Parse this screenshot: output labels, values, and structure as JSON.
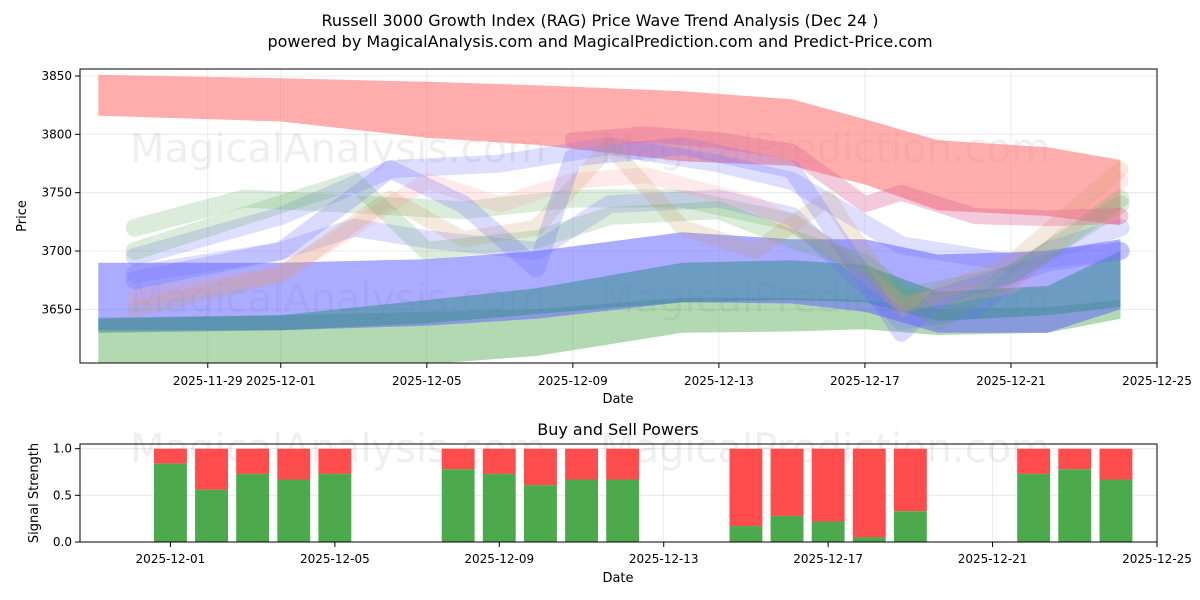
{
  "chart_data": [
    {
      "type": "area",
      "title_line1": "Russell 3000 Growth Index (RAG) Price Wave Trend Analysis (Dec 24 )",
      "title_line2": "powered by MagicalAnalysis.com and MagicalPrediction.com and Predict-Price.com",
      "xlabel": "Date",
      "ylabel": "Price",
      "xlim": [
        "2025-11-26",
        "2025-12-25"
      ],
      "ylim": [
        3604,
        3856
      ],
      "x_ticks": [
        "2025-11-29",
        "2025-12-01",
        "2025-12-05",
        "2025-12-09",
        "2025-12-13",
        "2025-12-17",
        "2025-12-21",
        "2025-12-25"
      ],
      "y_ticks": [
        3650,
        3700,
        3750,
        3800,
        3850
      ],
      "grid": true,
      "watermarks": [
        "MagicalAnalysis.com",
        "MagicalPrediction.com"
      ],
      "bands": [
        {
          "name": "red-top",
          "color": "#ff7777",
          "opacity": 0.6,
          "points": [
            [
              "2025-11-26",
              3851,
              3816
            ],
            [
              "2025-12-01",
              3848,
              3811
            ],
            [
              "2025-12-05",
              3845,
              3797
            ],
            [
              "2025-12-08",
              3842,
              3791
            ],
            [
              "2025-12-12",
              3837,
              3777
            ],
            [
              "2025-12-15",
              3830,
              3773
            ],
            [
              "2025-12-17",
              3813,
              3757
            ],
            [
              "2025-12-19",
              3795,
              3735
            ],
            [
              "2025-12-22",
              3789,
              3730
            ],
            [
              "2025-12-24",
              3778,
              3722
            ]
          ]
        },
        {
          "name": "green-bottom",
          "color": "#55aa55",
          "opacity": 0.45,
          "points": [
            [
              "2025-11-26",
              3643,
              3600
            ],
            [
              "2025-12-01",
              3645,
              3600
            ],
            [
              "2025-12-05",
              3648,
              3603
            ],
            [
              "2025-12-08",
              3650,
              3610
            ],
            [
              "2025-12-12",
              3660,
              3630
            ],
            [
              "2025-12-15",
              3660,
              3631
            ],
            [
              "2025-12-17",
              3658,
              3633
            ],
            [
              "2025-12-19",
              3650,
              3628
            ],
            [
              "2025-12-22",
              3652,
              3630
            ],
            [
              "2025-12-24",
              3658,
              3642
            ]
          ]
        },
        {
          "name": "blue-bottom",
          "color": "#6666ff",
          "opacity": 0.55,
          "points": [
            [
              "2025-11-26",
              3690,
              3632
            ],
            [
              "2025-12-01",
              3690,
              3632
            ],
            [
              "2025-12-05",
              3693,
              3636
            ],
            [
              "2025-12-08",
              3700,
              3642
            ],
            [
              "2025-12-12",
              3716,
              3656
            ],
            [
              "2025-12-15",
              3710,
              3655
            ],
            [
              "2025-12-17",
              3710,
              3648
            ],
            [
              "2025-12-19",
              3697,
              3630
            ],
            [
              "2025-12-22",
              3700,
              3630
            ],
            [
              "2025-12-24",
              3710,
              3650
            ]
          ]
        },
        {
          "name": "teal-mid",
          "color": "#3a8f8f",
          "opacity": 0.55,
          "points": [
            [
              "2025-11-26",
              3642,
              3630
            ],
            [
              "2025-12-01",
              3645,
              3632
            ],
            [
              "2025-12-05",
              3658,
              3638
            ],
            [
              "2025-12-08",
              3668,
              3646
            ],
            [
              "2025-12-12",
              3690,
              3656
            ],
            [
              "2025-12-15",
              3692,
              3658
            ],
            [
              "2025-12-17",
              3688,
              3656
            ],
            [
              "2025-12-19",
              3665,
              3640
            ],
            [
              "2025-12-22",
              3670,
              3645
            ],
            [
              "2025-12-24",
              3700,
              3652
            ]
          ]
        }
      ],
      "waves": [
        {
          "color": "#6a6aff",
          "opacity": 0.22,
          "width": 18,
          "points": [
            [
              "2025-11-27",
              3695
            ],
            [
              "2025-12-01",
              3730
            ],
            [
              "2025-12-04",
              3770
            ],
            [
              "2025-12-07",
              3775
            ],
            [
              "2025-12-10",
              3790
            ],
            [
              "2025-12-13",
              3775
            ],
            [
              "2025-12-15",
              3760
            ],
            [
              "2025-12-18",
              3705
            ],
            [
              "2025-12-21",
              3690
            ],
            [
              "2025-12-24",
              3700
            ]
          ]
        },
        {
          "color": "#5aaa5a",
          "opacity": 0.22,
          "width": 18,
          "points": [
            [
              "2025-11-27",
              3720
            ],
            [
              "2025-11-30",
              3745
            ],
            [
              "2025-12-03",
              3740
            ],
            [
              "2025-12-06",
              3735
            ],
            [
              "2025-12-09",
              3745
            ],
            [
              "2025-12-12",
              3745
            ],
            [
              "2025-12-15",
              3725
            ],
            [
              "2025-12-18",
              3660
            ],
            [
              "2025-12-21",
              3680
            ],
            [
              "2025-12-24",
              3740
            ]
          ]
        },
        {
          "color": "#6a6aff",
          "opacity": 0.22,
          "width": 18,
          "points": [
            [
              "2025-11-27",
              3680
            ],
            [
              "2025-12-01",
              3700
            ],
            [
              "2025-12-03",
              3720
            ],
            [
              "2025-12-05",
              3710
            ],
            [
              "2025-12-08",
              3700
            ],
            [
              "2025-12-10",
              3740
            ],
            [
              "2025-12-13",
              3745
            ],
            [
              "2025-12-15",
              3730
            ],
            [
              "2025-12-18",
              3640
            ],
            [
              "2025-12-20",
              3650
            ],
            [
              "2025-12-22",
              3700
            ],
            [
              "2025-12-24",
              3720
            ]
          ]
        },
        {
          "color": "#ff9999",
          "opacity": 0.22,
          "width": 16,
          "points": [
            [
              "2025-11-27",
              3660
            ],
            [
              "2025-12-01",
              3680
            ],
            [
              "2025-12-03",
              3720
            ],
            [
              "2025-12-05",
              3760
            ],
            [
              "2025-12-07",
              3740
            ],
            [
              "2025-12-09",
              3760
            ],
            [
              "2025-12-11",
              3765
            ],
            [
              "2025-12-14",
              3740
            ],
            [
              "2025-12-16",
              3705
            ],
            [
              "2025-12-18",
              3655
            ],
            [
              "2025-12-21",
              3670
            ],
            [
              "2025-12-24",
              3760
            ]
          ]
        },
        {
          "color": "#cc9966",
          "opacity": 0.22,
          "width": 16,
          "points": [
            [
              "2025-11-27",
              3650
            ],
            [
              "2025-12-01",
              3680
            ],
            [
              "2025-12-04",
              3745
            ],
            [
              "2025-12-06",
              3710
            ],
            [
              "2025-12-08",
              3720
            ],
            [
              "2025-12-10",
              3790
            ],
            [
              "2025-12-12",
              3720
            ],
            [
              "2025-12-14",
              3700
            ],
            [
              "2025-12-16",
              3745
            ],
            [
              "2025-12-18",
              3650
            ],
            [
              "2025-12-21",
              3690
            ],
            [
              "2025-12-24",
              3770
            ]
          ]
        },
        {
          "color": "#6a6aff",
          "opacity": 0.25,
          "width": 18,
          "points": [
            [
              "2025-11-27",
              3675
            ],
            [
              "2025-12-01",
              3700
            ],
            [
              "2025-12-04",
              3770
            ],
            [
              "2025-12-06",
              3740
            ],
            [
              "2025-12-08",
              3685
            ],
            [
              "2025-12-09",
              3780
            ],
            [
              "2025-12-12",
              3790
            ],
            [
              "2025-12-15",
              3770
            ],
            [
              "2025-12-18",
              3630
            ],
            [
              "2025-12-19",
              3660
            ],
            [
              "2025-12-22",
              3690
            ],
            [
              "2025-12-24",
              3700
            ]
          ]
        },
        {
          "color": "#5aaa5a",
          "opacity": 0.22,
          "width": 18,
          "points": [
            [
              "2025-11-27",
              3700
            ],
            [
              "2025-12-01",
              3740
            ],
            [
              "2025-12-03",
              3760
            ],
            [
              "2025-12-05",
              3700
            ],
            [
              "2025-12-08",
              3710
            ],
            [
              "2025-12-10",
              3730
            ],
            [
              "2025-12-13",
              3735
            ],
            [
              "2025-12-15",
              3710
            ],
            [
              "2025-12-17",
              3690
            ],
            [
              "2025-12-19",
              3640
            ],
            [
              "2025-12-22",
              3700
            ],
            [
              "2025-12-24",
              3745
            ]
          ]
        },
        {
          "color": "#dd6699",
          "opacity": 0.35,
          "width": 16,
          "points": [
            [
              "2025-12-09",
              3795
            ],
            [
              "2025-12-11",
              3800
            ],
            [
              "2025-12-13",
              3795
            ],
            [
              "2025-12-15",
              3785
            ],
            [
              "2025-12-17",
              3740
            ],
            [
              "2025-12-18",
              3750
            ],
            [
              "2025-12-20",
              3730
            ],
            [
              "2025-12-22",
              3728
            ],
            [
              "2025-12-24",
              3730
            ]
          ]
        }
      ]
    },
    {
      "type": "bar",
      "title": "Buy and Sell Powers",
      "xlabel": "Date",
      "ylabel": "Signal Strength",
      "xlim": [
        "2025-11-29",
        "2025-12-25"
      ],
      "ylim": [
        0,
        1.05
      ],
      "x_ticks": [
        "2025-12-01",
        "2025-12-05",
        "2025-12-09",
        "2025-12-13",
        "2025-12-17",
        "2025-12-21",
        "2025-12-25"
      ],
      "y_ticks": [
        "0.0",
        "0.5",
        "1.0"
      ],
      "grid": true,
      "watermarks": [
        "MagicalAnalysis.com",
        "MagicalPrediction.com"
      ],
      "series": [
        {
          "name": "Buy",
          "color": "#4caa4c"
        },
        {
          "name": "Sell",
          "color": "#ff4c4c"
        }
      ],
      "dates": [
        "2025-12-01",
        "2025-12-02",
        "2025-12-03",
        "2025-12-04",
        "2025-12-05",
        "2025-12-08",
        "2025-12-09",
        "2025-12-10",
        "2025-12-11",
        "2025-12-12",
        "2025-12-15",
        "2025-12-16",
        "2025-12-17",
        "2025-12-18",
        "2025-12-19",
        "2025-12-22",
        "2025-12-23",
        "2025-12-24"
      ],
      "buy_values": [
        0.84,
        0.56,
        0.73,
        0.67,
        0.73,
        0.78,
        0.73,
        0.61,
        0.67,
        0.67,
        0.17,
        0.28,
        0.22,
        0.05,
        0.33,
        0.73,
        0.78,
        0.67
      ]
    }
  ]
}
